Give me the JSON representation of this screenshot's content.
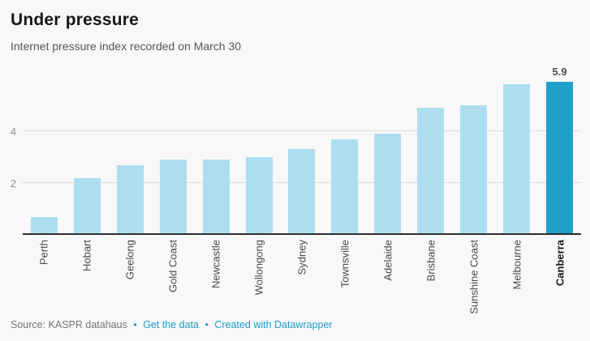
{
  "chart_data": {
    "type": "bar",
    "title": "Under pressure",
    "subtitle": "Internet pressure index recorded on March 30",
    "categories": [
      "Perth",
      "Hobart",
      "Geelong",
      "Gold Coast",
      "Newcastle",
      "Wollongong",
      "Sydney",
      "Townsville",
      "Adelaide",
      "Brisbane",
      "Sunshine Coast",
      "Melbourne",
      "Canberra"
    ],
    "values": [
      0.7,
      2.2,
      2.7,
      2.9,
      2.9,
      3.0,
      3.3,
      3.7,
      3.9,
      4.9,
      5.0,
      5.8,
      5.9
    ],
    "highlighted_category": "Canberra",
    "value_labels": {
      "Canberra": "5.9"
    },
    "xlabel": "",
    "ylabel": "",
    "yticks": [
      2,
      4
    ],
    "ylim": [
      0,
      6.8
    ],
    "grid": true,
    "legend": "none",
    "x_labels_rotated_degrees": -90,
    "colors": {
      "background": "#f8f8f8",
      "bar": "#addeef",
      "bar_highlight": "#1ea1c9",
      "gridline": "#dbdbdb",
      "axis_line": "#2e2e2e",
      "link": "#1d9cc5"
    }
  },
  "footer": {
    "source": "Source: KASPR datahaus",
    "separator": "•",
    "links": [
      {
        "label": "Get the data"
      },
      {
        "label": "Created with Datawrapper"
      }
    ]
  }
}
